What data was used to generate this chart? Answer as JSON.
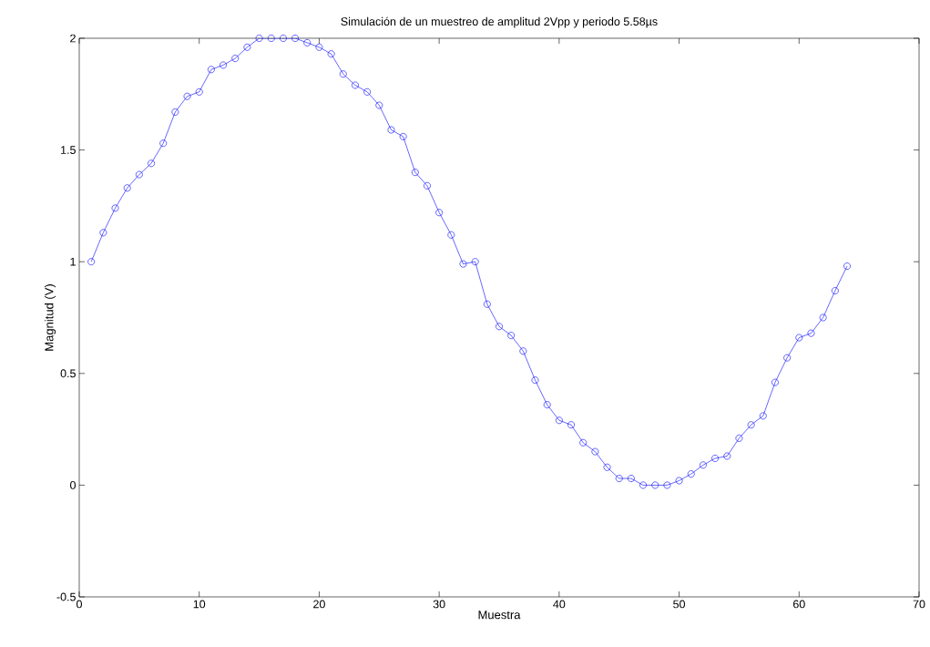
{
  "chart_data": {
    "type": "line",
    "title": "Simulación de un muestreo de amplitud 2Vpp y periodo 5.58µs",
    "xlabel": "Muestra",
    "ylabel": "Magnitud (V)",
    "x": [
      1,
      2,
      3,
      4,
      5,
      6,
      7,
      8,
      9,
      10,
      11,
      12,
      13,
      14,
      15,
      16,
      17,
      18,
      19,
      20,
      21,
      22,
      23,
      24,
      25,
      26,
      27,
      28,
      29,
      30,
      31,
      32,
      33,
      34,
      35,
      36,
      37,
      38,
      39,
      40,
      41,
      42,
      43,
      44,
      45,
      46,
      47,
      48,
      49,
      50,
      51,
      52,
      53,
      54,
      55,
      56,
      57,
      58,
      59,
      60,
      61,
      62,
      63,
      64
    ],
    "series": [
      {
        "color": "#0000ff",
        "values": [
          1.0,
          1.13,
          1.24,
          1.33,
          1.39,
          1.44,
          1.53,
          1.67,
          1.74,
          1.76,
          1.86,
          1.88,
          1.91,
          1.96,
          2.0,
          2.0,
          2.0,
          2.0,
          1.98,
          1.96,
          1.93,
          1.84,
          1.79,
          1.76,
          1.7,
          1.59,
          1.56,
          1.4,
          1.34,
          1.22,
          1.12,
          0.99,
          1.0,
          0.81,
          0.71,
          0.67,
          0.6,
          0.47,
          0.36,
          0.29,
          0.27,
          0.19,
          0.15,
          0.08,
          0.03,
          0.03,
          0.0,
          0.0,
          0.0,
          0.02,
          0.05,
          0.09,
          0.12,
          0.13,
          0.21,
          0.27,
          0.31,
          0.46,
          0.57,
          0.66,
          0.68,
          0.75,
          0.87,
          0.98
        ]
      }
    ],
    "xlim": [
      0,
      70
    ],
    "ylim": [
      -0.5,
      2
    ],
    "xticks": [
      0,
      10,
      20,
      30,
      40,
      50,
      60,
      70
    ],
    "yticks": [
      -0.5,
      0,
      0.5,
      1,
      1.5,
      2
    ],
    "grid": false,
    "marker": "circle",
    "line_style": "solid"
  }
}
